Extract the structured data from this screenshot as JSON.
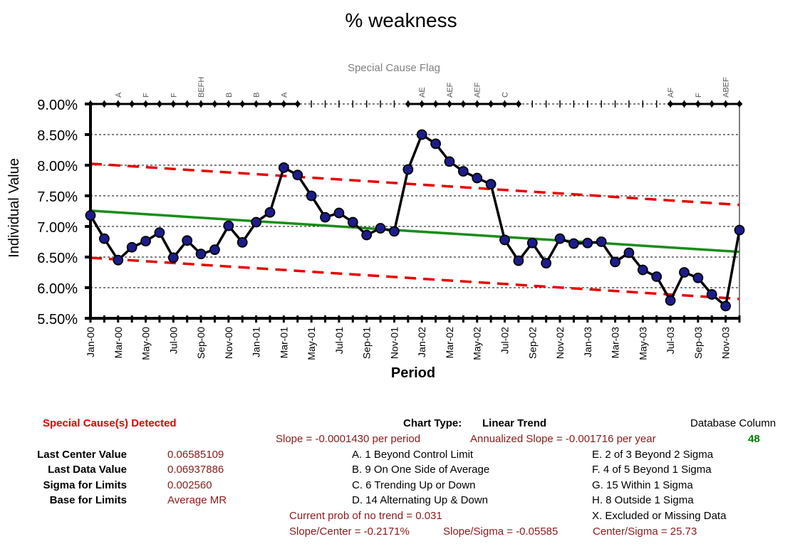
{
  "chart_data": {
    "type": "line",
    "title": "% weakness",
    "xlabel": "Period",
    "ylabel": "Individual Value",
    "ylim": [
      0.055,
      0.09
    ],
    "y_ticks": [
      0.055,
      0.06,
      0.065,
      0.07,
      0.075,
      0.08,
      0.085,
      0.09
    ],
    "y_tick_labels": [
      "5.50%",
      "6.00%",
      "6.50%",
      "7.00%",
      "7.50%",
      "8.00%",
      "8.50%",
      "9.00%"
    ],
    "x_tick_labels": [
      "Jan-00",
      "Mar-00",
      "May-00",
      "Jul-00",
      "Sep-00",
      "Nov-00",
      "Jan-01",
      "Mar-01",
      "May-01",
      "Jul-01",
      "Sep-01",
      "Nov-01",
      "Jan-02",
      "Mar-02",
      "May-02",
      "Jul-02",
      "Sep-02",
      "Nov-02",
      "Jan-03",
      "Mar-03",
      "May-03",
      "Jul-03",
      "Sep-03",
      "Nov-03"
    ],
    "periods": 48,
    "series": [
      {
        "name": "Individual Value",
        "values": [
          0.0718,
          0.068,
          0.0645,
          0.0666,
          0.0676,
          0.069,
          0.0649,
          0.0677,
          0.0655,
          0.0662,
          0.0701,
          0.0674,
          0.0707,
          0.0723,
          0.0796,
          0.0784,
          0.075,
          0.0715,
          0.0722,
          0.0707,
          0.0686,
          0.0697,
          0.0692,
          0.0793,
          0.085,
          0.0835,
          0.0806,
          0.079,
          0.0779,
          0.0769,
          0.0678,
          0.0644,
          0.0673,
          0.064,
          0.068,
          0.0672,
          0.0673,
          0.0675,
          0.0642,
          0.0657,
          0.0629,
          0.0618,
          0.0579,
          0.0625,
          0.0616,
          0.0589,
          0.057,
          0.0694
        ]
      },
      {
        "name": "Center Line",
        "start": 0.07257,
        "end": 0.06585
      },
      {
        "name": "Upper Limit",
        "start": 0.08025,
        "end": 0.07353
      },
      {
        "name": "Lower Limit",
        "start": 0.06489,
        "end": 0.05817
      }
    ],
    "special_cause_flag": {
      "title": "Special Cause Flag",
      "flagged_periods": [
        0,
        1,
        2,
        3,
        4,
        5,
        6,
        7,
        8,
        9,
        10,
        11,
        12,
        13,
        14,
        15,
        23,
        24,
        25,
        26,
        27,
        28,
        29,
        30,
        31,
        42,
        43,
        44,
        45,
        46,
        47
      ],
      "labels": [
        {
          "period": 2,
          "text": "A"
        },
        {
          "period": 4,
          "text": "F"
        },
        {
          "period": 6,
          "text": "F"
        },
        {
          "period": 8,
          "text": "BEFH"
        },
        {
          "period": 10,
          "text": "B"
        },
        {
          "period": 12,
          "text": "B"
        },
        {
          "period": 14,
          "text": "A"
        },
        {
          "period": 24,
          "text": "AE"
        },
        {
          "period": 26,
          "text": "AEF"
        },
        {
          "period": 28,
          "text": "AEF"
        },
        {
          "period": 30,
          "text": "C"
        },
        {
          "period": 42,
          "text": "AF"
        },
        {
          "period": 44,
          "text": "F"
        },
        {
          "period": 46,
          "text": "ABEF"
        }
      ]
    }
  },
  "info": {
    "special_causes": "Special Cause(s) Detected",
    "chart_type_label": "Chart Type:",
    "chart_type_value": "Linear Trend",
    "database_column_label": "Database Column",
    "database_column_value": "48",
    "slope": "Slope = -0.0001430 per period",
    "annualized_slope": "Annualized Slope = -0.001716 per year",
    "stats": [
      {
        "label": "Last Center Value",
        "value": "0.06585109"
      },
      {
        "label": "Last Data Value",
        "value": "0.06937886"
      },
      {
        "label": "Sigma for Limits",
        "value": "0.002560"
      },
      {
        "label": "Base for Limits",
        "value": "Average MR"
      }
    ],
    "rules_left": [
      "A.  1 Beyond Control Limit",
      "B.  9 On One Side of Average",
      "C.  6 Trending Up or Down",
      "D.  14 Alternating  Up & Down"
    ],
    "rules_right": [
      "E.   2 of 3 Beyond 2 Sigma",
      "F.   4 of 5 Beyond 1 Sigma",
      "G.   15 Within 1 Sigma",
      "H.   8 Outside 1 Sigma",
      "X.   Excluded or Missing Data"
    ],
    "prob_no_trend": "Current prob of no trend = 0.031",
    "slope_center": "Slope/Center = -0.2171%",
    "slope_sigma": "Slope/Sigma = -0.05585",
    "center_sigma": "Center/Sigma = 25.73"
  }
}
